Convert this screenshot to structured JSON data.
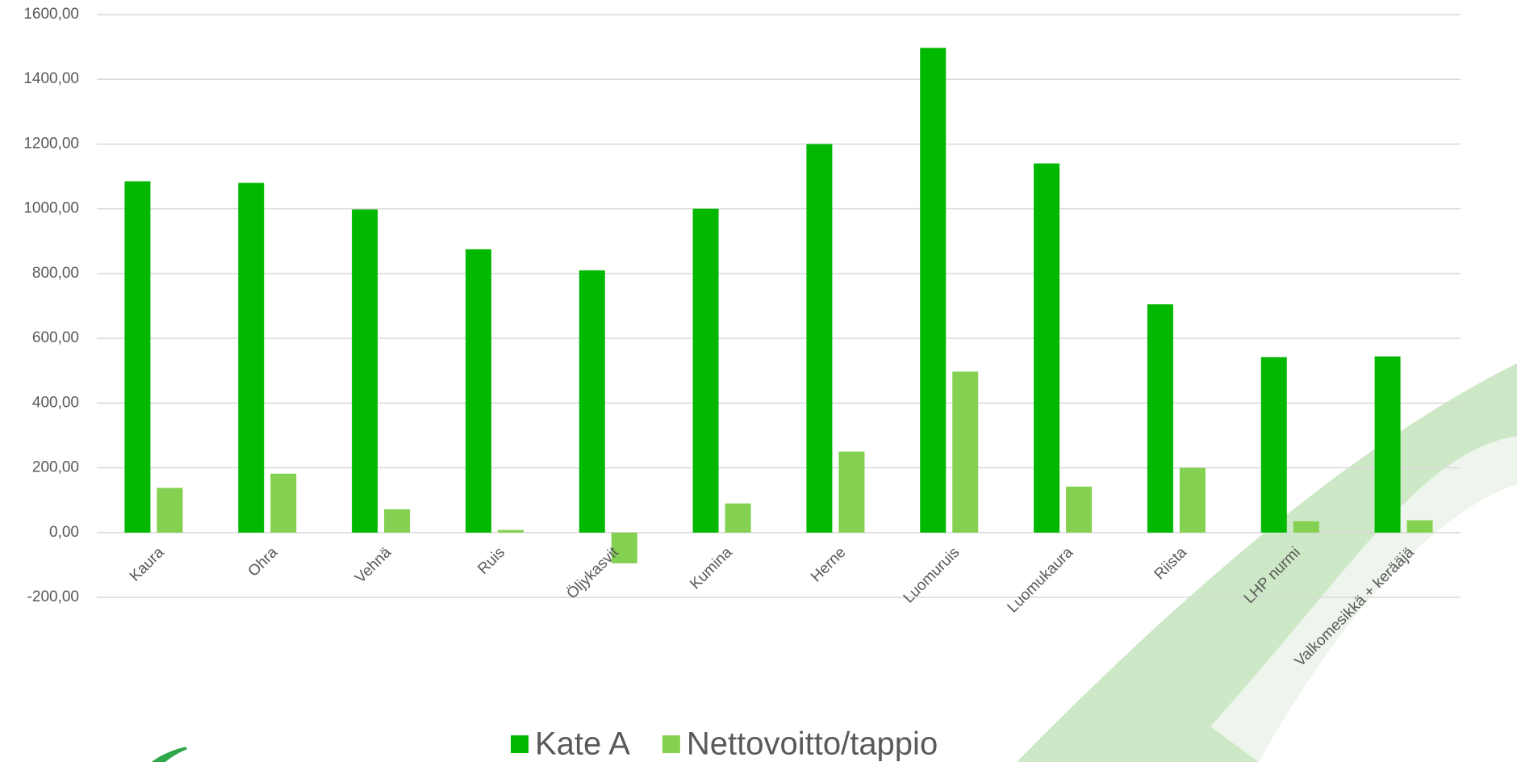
{
  "chart_data": {
    "type": "bar",
    "categories": [
      "Kaura",
      "Ohra",
      "Vehnä",
      "Ruis",
      "Öljykasvit",
      "Kumina",
      "Herne",
      "Luomuruis",
      "Luomukaura",
      "Riista",
      "LHP nurmi",
      "Valkomesikkä + kerääjä"
    ],
    "series": [
      {
        "name": "Kate A",
        "color": "#00b800",
        "values": [
          1085,
          1080,
          998,
          875,
          810,
          1000,
          1200,
          1497,
          1140,
          705,
          542,
          544
        ]
      },
      {
        "name": "Nettovoitto/tappio",
        "color": "#84d050",
        "values": [
          138,
          182,
          72,
          8,
          -95,
          90,
          250,
          497,
          142,
          200,
          35,
          38
        ]
      }
    ],
    "ylim": [
      -200,
      1600
    ],
    "yticks": [
      {
        "value": -200,
        "label": "-200,00"
      },
      {
        "value": 0,
        "label": "0,00"
      },
      {
        "value": 200,
        "label": "200,00"
      },
      {
        "value": 400,
        "label": "400,00"
      },
      {
        "value": 600,
        "label": "600,00"
      },
      {
        "value": 800,
        "label": "800,00"
      },
      {
        "value": 1000,
        "label": "1000,00"
      },
      {
        "value": 1200,
        "label": "1200,00"
      },
      {
        "value": 1400,
        "label": "1400,00"
      },
      {
        "value": 1600,
        "label": "1600,00"
      }
    ],
    "grid": true,
    "legend": "bottom"
  }
}
